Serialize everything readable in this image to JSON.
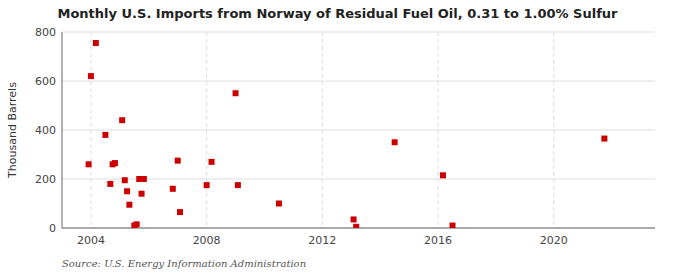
{
  "chart_data": {
    "type": "scatter",
    "title": "Monthly U.S. Imports from Norway of Residual Fuel Oil, 0.31 to 1.00% Sulfur",
    "y_label": "Thousand Barrels",
    "source": "Source: U.S. Energy Information Administration",
    "color": "#cc0000",
    "marker": "square",
    "grid": true,
    "xlim": [
      2003.0,
      2023.5
    ],
    "ylim": [
      0,
      800
    ],
    "xticks": [
      2004,
      2008,
      2012,
      2016,
      2020
    ],
    "yticks": [
      0,
      200,
      400,
      600,
      800
    ],
    "x": [
      2003.92,
      2004.0,
      2004.17,
      2004.5,
      2004.67,
      2004.75,
      2004.83,
      2005.08,
      2005.17,
      2005.25,
      2005.33,
      2005.5,
      2005.58,
      2005.67,
      2005.75,
      2005.83,
      2006.83,
      2007.0,
      2007.08,
      2008.0,
      2008.17,
      2009.0,
      2009.08,
      2010.5,
      2013.08,
      2013.17,
      2014.5,
      2016.17,
      2016.5,
      2021.75
    ],
    "values": [
      260,
      620,
      755,
      380,
      180,
      260,
      265,
      440,
      195,
      150,
      95,
      10,
      15,
      200,
      140,
      200,
      160,
      275,
      65,
      175,
      270,
      550,
      175,
      100,
      35,
      5,
      350,
      215,
      10,
      365
    ]
  }
}
